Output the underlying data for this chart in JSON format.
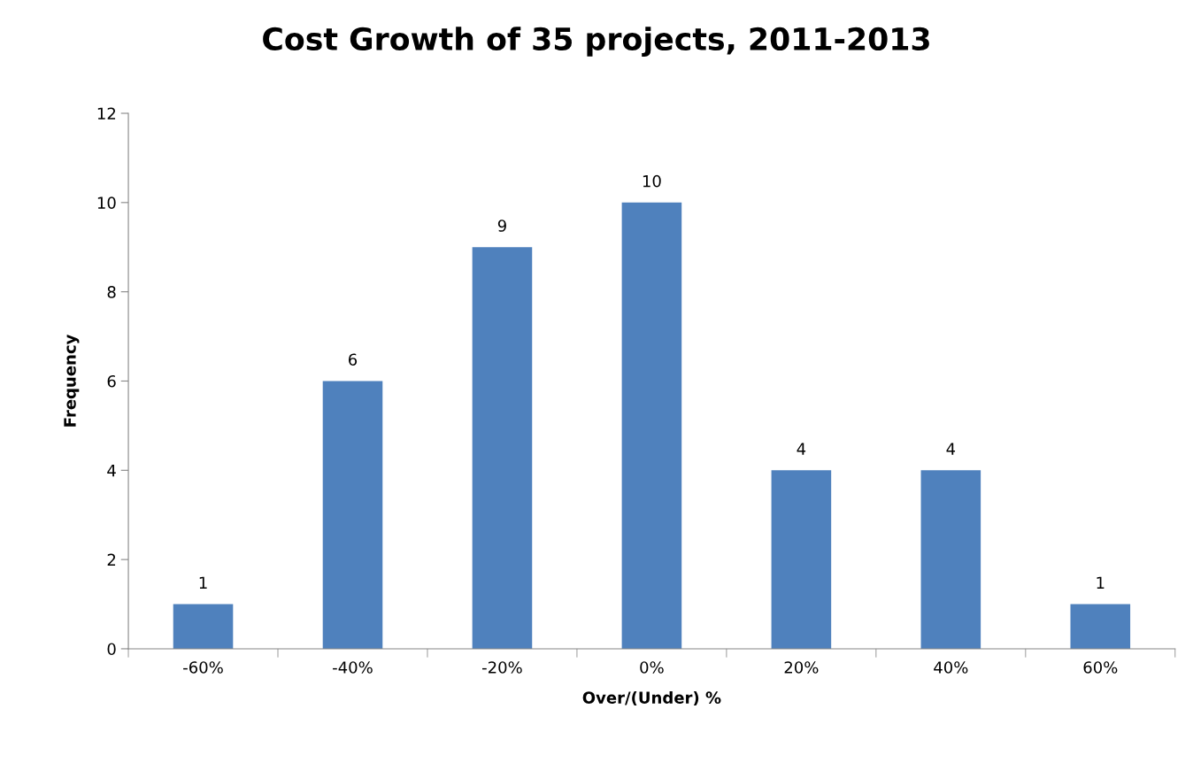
{
  "chart_data": {
    "type": "bar",
    "title": "Cost Growth of 35 projects, 2011-2013",
    "xlabel": "Over/(Under) %",
    "ylabel": "Frequency",
    "categories": [
      "-60%",
      "-40%",
      "-20%",
      "0%",
      "20%",
      "40%",
      "60%"
    ],
    "values": [
      1,
      6,
      9,
      10,
      4,
      4,
      1
    ],
    "color": "#4f81bd",
    "ylim": [
      0,
      12
    ],
    "yticks": [
      0,
      2,
      4,
      6,
      8,
      10,
      12
    ],
    "grid": false,
    "data_labels": true
  }
}
